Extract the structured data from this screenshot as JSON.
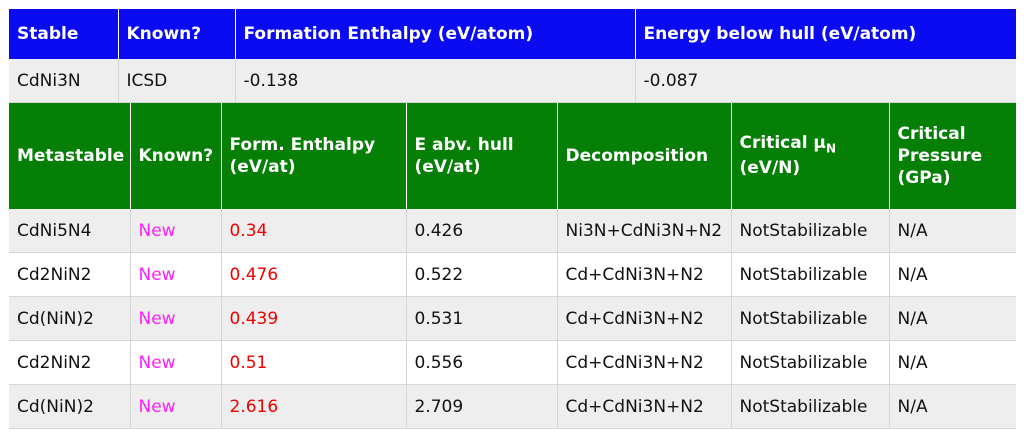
{
  "stable_table": {
    "headers": [
      "Stable",
      "Known?",
      "Formation Enthalpy (eV/atom)",
      "Energy below hull (eV/atom)"
    ],
    "row": [
      "CdNi3N",
      "ICSD",
      "-0.138",
      "-0.087"
    ]
  },
  "metastable_table": {
    "headers": {
      "col1": "Metastable",
      "col2": "Known?",
      "col3_line1": "Form. Enthalpy",
      "col3_line2": "(eV/at)",
      "col4_line1": "E abv. hull",
      "col4_line2": "(eV/at)",
      "col5": "Decomposition",
      "col6_prefix": "Critical μ",
      "col6_sub": "N",
      "col6_line2": "(eV/N)",
      "col7_line1": "Critical",
      "col7_line2": "Pressure",
      "col7_line3": "(GPa)"
    },
    "rows": [
      [
        "CdNi5N4",
        "New",
        "0.34",
        "0.426",
        "Ni3N+CdNi3N+N2",
        "NotStabilizable",
        "N/A"
      ],
      [
        "Cd2NiN2",
        "New",
        "0.476",
        "0.522",
        "Cd+CdNi3N+N2",
        "NotStabilizable",
        "N/A"
      ],
      [
        "Cd(NiN)2",
        "New",
        "0.439",
        "0.531",
        "Cd+CdNi3N+N2",
        "NotStabilizable",
        "N/A"
      ],
      [
        "Cd2NiN2",
        "New",
        "0.51",
        "0.556",
        "Cd+CdNi3N+N2",
        "NotStabilizable",
        "N/A"
      ],
      [
        "Cd(NiN)2",
        "New",
        "2.616",
        "2.709",
        "Cd+CdNi3N+N2",
        "NotStabilizable",
        "N/A"
      ]
    ]
  },
  "colors": {
    "stable_header": "#0b0bf2",
    "metastable_header": "#067f06",
    "new_text": "#ff1fff",
    "enthalpy_text": "#f20000"
  }
}
